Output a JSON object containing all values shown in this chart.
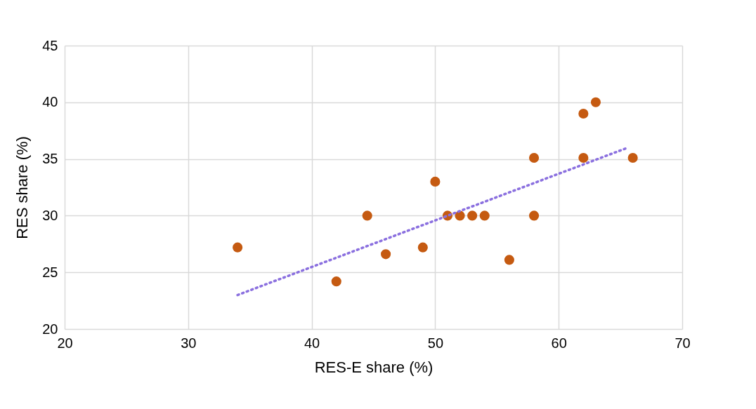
{
  "chart_data": {
    "type": "scatter",
    "xlabel": "RES-E share (%)",
    "ylabel": "RES share (%)",
    "xlim": [
      20,
      70
    ],
    "xticks": [
      20,
      30,
      40,
      50,
      60,
      70
    ],
    "ylim": [
      20,
      45
    ],
    "yticks": [
      20,
      25,
      30,
      35,
      40,
      45
    ],
    "grid": true,
    "series": [
      {
        "type": "scatter",
        "marker": "circle",
        "color": "#c55a11",
        "x": [
          34,
          42,
          44.5,
          46,
          49,
          50,
          51,
          52,
          53,
          54,
          56,
          58,
          58,
          62,
          62,
          63,
          66
        ],
        "values": [
          27.2,
          24.2,
          30,
          26.6,
          27.2,
          33,
          30,
          30,
          30,
          30,
          26.1,
          35.1,
          30,
          39,
          35.1,
          40,
          35.1
        ]
      },
      {
        "type": "line",
        "color": "#8a6fdf",
        "line_style": "dotted",
        "x": [
          34,
          65.6
        ],
        "values": [
          23,
          36
        ]
      }
    ]
  }
}
